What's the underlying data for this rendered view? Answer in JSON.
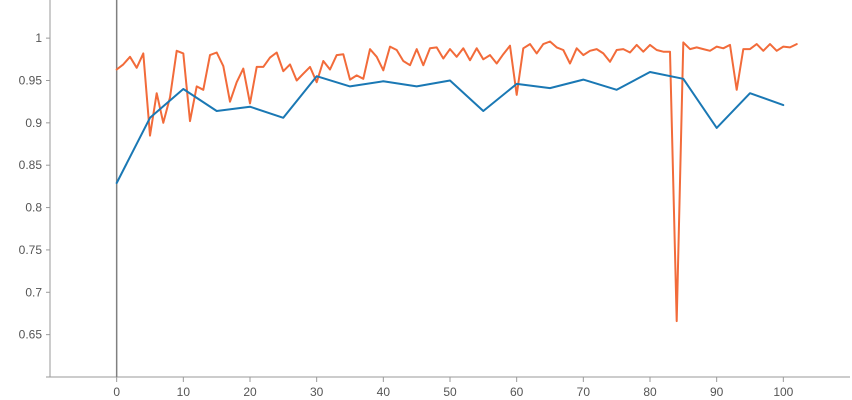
{
  "chart_data": {
    "type": "line",
    "title": "",
    "xlabel": "",
    "ylabel": "",
    "xlim": [
      -10,
      110
    ],
    "ylim": [
      0.6,
      1.045
    ],
    "x_ticks": [
      0,
      10,
      20,
      30,
      40,
      50,
      60,
      70,
      80,
      90,
      100
    ],
    "y_ticks": [
      0.65,
      0.7,
      0.75,
      0.8,
      0.85,
      0.9,
      0.95,
      1
    ],
    "x_tick_labels": [
      "0",
      "10",
      "20",
      "30",
      "40",
      "50",
      "60",
      "70",
      "80",
      "90",
      "100"
    ],
    "y_tick_labels": [
      "0.65",
      "0.7",
      "0.75",
      "0.8",
      "0.85",
      "0.9",
      "0.95",
      "1"
    ],
    "grid": false,
    "legend": "none",
    "series": [
      {
        "color": "#f26b3a",
        "x": [
          0,
          1,
          2,
          3,
          4,
          5,
          6,
          7,
          8,
          9,
          10,
          11,
          12,
          13,
          14,
          15,
          16,
          17,
          18,
          19,
          20,
          21,
          22,
          23,
          24,
          25,
          26,
          27,
          28,
          29,
          30,
          31,
          32,
          33,
          34,
          35,
          36,
          37,
          38,
          39,
          40,
          41,
          42,
          43,
          44,
          45,
          46,
          47,
          48,
          49,
          50,
          51,
          52,
          53,
          54,
          55,
          56,
          57,
          58,
          59,
          60,
          61,
          62,
          63,
          64,
          65,
          66,
          67,
          68,
          69,
          70,
          71,
          72,
          73,
          74,
          75,
          76,
          77,
          78,
          79,
          80,
          81,
          82,
          83,
          84,
          85,
          86,
          87,
          88,
          89,
          90,
          91,
          92,
          93,
          94,
          95,
          96,
          97,
          98,
          99,
          100,
          101,
          102
        ],
        "values": [
          0.963,
          0.969,
          0.978,
          0.965,
          0.982,
          0.885,
          0.935,
          0.9,
          0.93,
          0.985,
          0.982,
          0.902,
          0.943,
          0.939,
          0.98,
          0.983,
          0.967,
          0.925,
          0.948,
          0.964,
          0.923,
          0.966,
          0.966,
          0.977,
          0.983,
          0.961,
          0.969,
          0.95,
          0.958,
          0.966,
          0.948,
          0.973,
          0.963,
          0.98,
          0.981,
          0.951,
          0.956,
          0.952,
          0.987,
          0.978,
          0.962,
          0.99,
          0.986,
          0.973,
          0.968,
          0.987,
          0.968,
          0.988,
          0.989,
          0.976,
          0.987,
          0.978,
          0.988,
          0.974,
          0.988,
          0.975,
          0.98,
          0.97,
          0.981,
          0.991,
          0.933,
          0.988,
          0.993,
          0.982,
          0.993,
          0.996,
          0.989,
          0.986,
          0.97,
          0.988,
          0.98,
          0.985,
          0.987,
          0.982,
          0.972,
          0.986,
          0.987,
          0.983,
          0.992,
          0.984,
          0.992,
          0.986,
          0.984,
          0.984,
          0.666,
          0.995,
          0.987,
          0.989,
          0.987,
          0.985,
          0.99,
          0.988,
          0.992,
          0.939,
          0.987,
          0.987,
          0.993,
          0.985,
          0.993,
          0.985,
          0.99,
          0.989,
          0.993
        ]
      },
      {
        "color": "#1a78b4",
        "x": [
          0,
          5,
          10,
          15,
          20,
          25,
          30,
          35,
          40,
          45,
          50,
          55,
          60,
          65,
          70,
          75,
          80,
          85,
          90,
          95,
          100
        ],
        "values": [
          0.829,
          0.906,
          0.94,
          0.914,
          0.919,
          0.906,
          0.955,
          0.943,
          0.949,
          0.943,
          0.95,
          0.914,
          0.946,
          0.941,
          0.951,
          0.939,
          0.96,
          0.952,
          0.894,
          0.935,
          0.921
        ]
      }
    ]
  }
}
